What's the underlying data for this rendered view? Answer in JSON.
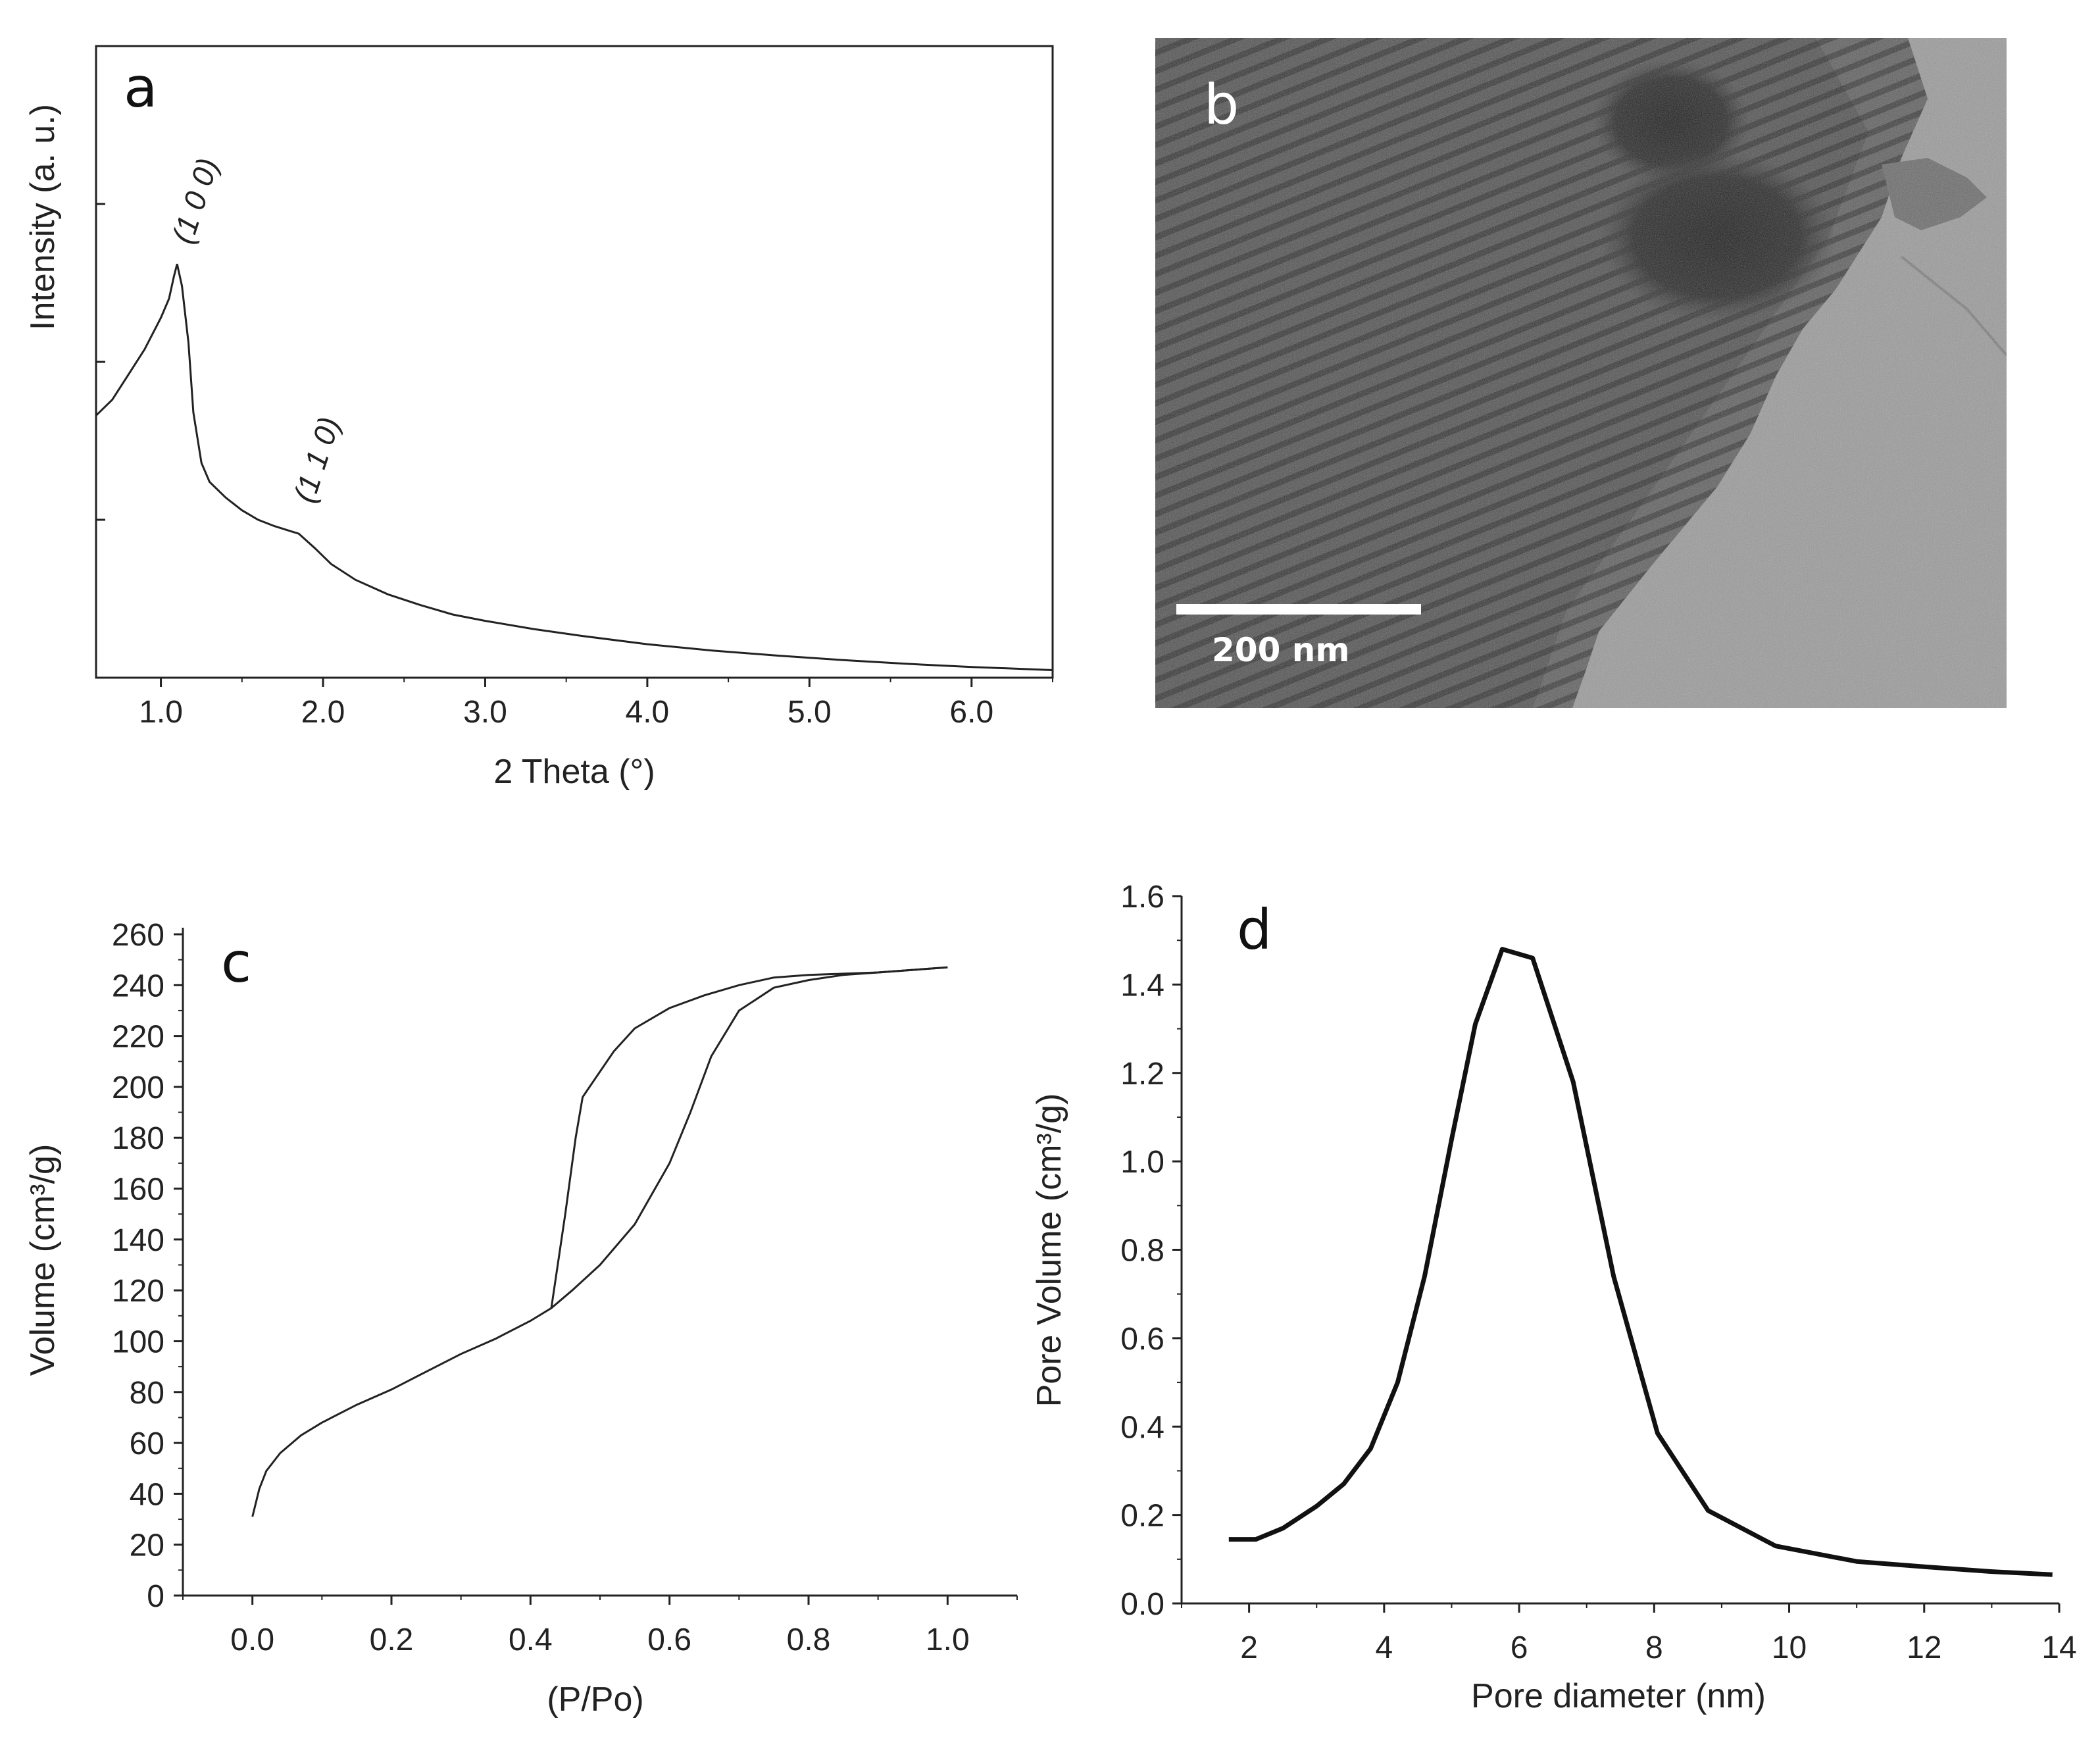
{
  "chart_data": [
    {
      "panel": "a",
      "type": "line",
      "xlabel": "2 Theta (°)",
      "ylabel": "Intensity (a. u.)",
      "xlim": [
        0.6,
        6.5
      ],
      "ylim": [
        0,
        1
      ],
      "xticks": [
        "1.0",
        "2.0",
        "3.0",
        "4.0",
        "5.0",
        "6.0"
      ],
      "grid": false,
      "annotations": [
        {
          "text": "(1 0 0)",
          "x": 1.1,
          "y": 0.655
        },
        {
          "text": "(1 1 0)",
          "x": 1.85,
          "y": 0.245
        }
      ],
      "series": [
        {
          "x": [
            0.6,
            0.7,
            0.8,
            0.9,
            1.0,
            1.05,
            1.08,
            1.1,
            1.13,
            1.17,
            1.2,
            1.25,
            1.3,
            1.4,
            1.5,
            1.6,
            1.7,
            1.8,
            1.85,
            1.95,
            2.05,
            2.2,
            2.4,
            2.6,
            2.8,
            3.0,
            3.3,
            3.6,
            4.0,
            4.4,
            4.8,
            5.2,
            5.6,
            6.0,
            6.5
          ],
          "y": [
            0.415,
            0.44,
            0.48,
            0.52,
            0.57,
            0.6,
            0.635,
            0.655,
            0.62,
            0.53,
            0.42,
            0.34,
            0.31,
            0.285,
            0.265,
            0.25,
            0.24,
            0.232,
            0.228,
            0.205,
            0.18,
            0.155,
            0.132,
            0.115,
            0.1,
            0.09,
            0.077,
            0.066,
            0.053,
            0.043,
            0.035,
            0.028,
            0.022,
            0.017,
            0.012
          ]
        }
      ]
    },
    {
      "panel": "b",
      "type": "image",
      "scale_bar": "200 nm"
    },
    {
      "panel": "c",
      "type": "line",
      "xlabel": "(P/Po)",
      "ylabel": "Volume (cm³/g)",
      "xlim": [
        -0.1,
        1.1
      ],
      "ylim": [
        0,
        260
      ],
      "xticks": [
        "0.0",
        "0.2",
        "0.4",
        "0.6",
        "0.8",
        "1.0"
      ],
      "yticks": [
        "0",
        "20",
        "40",
        "60",
        "80",
        "100",
        "120",
        "140",
        "160",
        "180",
        "200",
        "220",
        "240",
        "260"
      ],
      "grid": false,
      "series": [
        {
          "x": [
            0.0,
            0.01,
            0.02,
            0.04,
            0.07,
            0.1,
            0.15,
            0.2,
            0.25,
            0.3,
            0.35,
            0.4,
            0.43,
            0.46,
            0.5,
            0.55,
            0.6,
            0.63,
            0.66,
            0.7,
            0.75,
            0.8,
            0.85,
            0.9,
            0.95,
            1.0
          ],
          "y": [
            31,
            42,
            49,
            56,
            63,
            68,
            75,
            81,
            88,
            95,
            101,
            108,
            113,
            120,
            130,
            146,
            170,
            190,
            212,
            230,
            239,
            242,
            244,
            245,
            246,
            247
          ]
        },
        {
          "x": [
            1.0,
            0.95,
            0.9,
            0.85,
            0.8,
            0.75,
            0.7,
            0.65,
            0.6,
            0.55,
            0.52,
            0.49,
            0.475,
            0.465,
            0.45,
            0.43
          ],
          "y": [
            247,
            246,
            245,
            244.5,
            244,
            243,
            240,
            236,
            231,
            223,
            214,
            202,
            196,
            180,
            150,
            113
          ]
        }
      ]
    },
    {
      "panel": "d",
      "type": "line",
      "xlabel": "Pore diameter (nm)",
      "ylabel": "Pore Volume (cm³/g)",
      "xlim": [
        1,
        14
      ],
      "ylim": [
        0,
        1.6
      ],
      "xticks": [
        "2",
        "4",
        "6",
        "8",
        "10",
        "12",
        "14"
      ],
      "yticks": [
        "0.0",
        "0.2",
        "0.4",
        "0.6",
        "0.8",
        "1.0",
        "1.2",
        "1.4",
        "1.6"
      ],
      "grid": false,
      "series": [
        {
          "x": [
            1.7,
            2.1,
            2.5,
            3.0,
            3.4,
            3.8,
            4.2,
            4.6,
            5.0,
            5.35,
            5.75,
            6.2,
            6.8,
            7.4,
            8.05,
            8.8,
            9.8,
            11.0,
            12.0,
            13.0,
            13.9
          ],
          "y": [
            0.145,
            0.145,
            0.17,
            0.22,
            0.27,
            0.35,
            0.5,
            0.74,
            1.05,
            1.31,
            1.48,
            1.46,
            1.18,
            0.74,
            0.385,
            0.21,
            0.13,
            0.095,
            0.083,
            0.072,
            0.065
          ]
        }
      ]
    }
  ]
}
